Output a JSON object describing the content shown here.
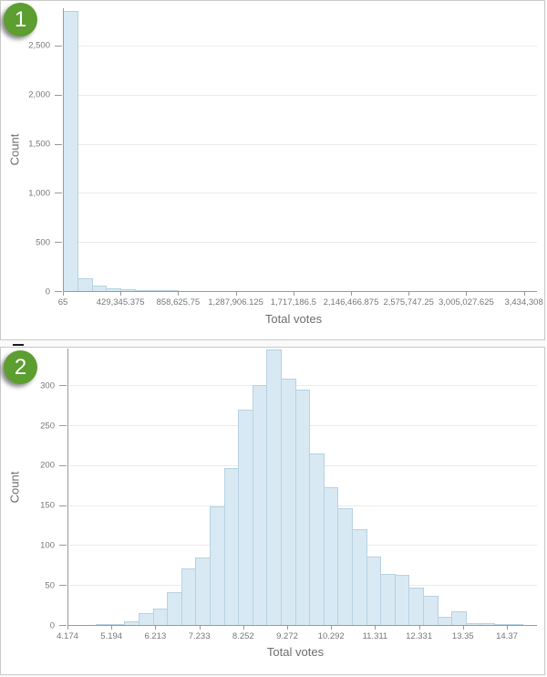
{
  "badges": [
    {
      "label": "1",
      "color": "#5c9e2f"
    },
    {
      "label": "2",
      "color": "#5c9e2f"
    }
  ],
  "colors": {
    "bar_fill": "#d8e9f3",
    "bar_border": "#b7d2e3",
    "axis_line": "#9a9a9a",
    "gridline": "#ebebeb",
    "tick_text": "#76777a",
    "title_text": "#6b6e70",
    "panel_border": "#c9c9c9",
    "badge_green": "#5c9e2f"
  },
  "chart_data": [
    {
      "type": "bar",
      "subtype": "histogram",
      "title": "",
      "xlabel": "Total votes",
      "ylabel": "Count",
      "grid": true,
      "legend": false,
      "bins": 32,
      "x_range": [
        65,
        3434308
      ],
      "x_tick_labels": [
        "65",
        "429,345.375",
        "858,625.75",
        "1,287,906.125",
        "1,717,186.5",
        "2,146,466.875",
        "2,575,747.25",
        "3,005,027.625",
        "3,434,308"
      ],
      "y_tick_labels": [
        "0",
        "500",
        "1,000",
        "1,500",
        "2,000",
        "2,500"
      ],
      "y_tick_values": [
        0,
        500,
        1000,
        1500,
        2000,
        2500
      ],
      "ylim": [
        0,
        2880
      ],
      "values": [
        2850,
        130,
        54,
        31,
        14,
        8,
        6,
        3,
        0,
        0,
        0,
        0,
        0,
        0,
        0,
        0,
        0,
        0,
        0,
        0,
        0,
        0,
        0,
        0,
        0,
        0,
        0,
        0,
        0,
        0,
        0,
        0
      ]
    },
    {
      "type": "bar",
      "subtype": "histogram",
      "title": "",
      "xlabel": "Total votes",
      "ylabel": "Count",
      "grid": true,
      "legend": false,
      "bins": 32,
      "x_range": [
        4.174,
        14.73
      ],
      "x_tick_labels": [
        "4.174",
        "5.194",
        "6.213",
        "7.233",
        "8.252",
        "9.272",
        "10.292",
        "11.311",
        "12.331",
        "13.35",
        "14.37"
      ],
      "y_tick_labels": [
        "0",
        "50",
        "100",
        "150",
        "200",
        "250",
        "300"
      ],
      "y_tick_values": [
        0,
        50,
        100,
        150,
        200,
        250,
        300
      ],
      "ylim": [
        0,
        346
      ],
      "values": [
        0,
        0,
        1,
        1,
        4,
        15,
        21,
        41,
        71,
        85,
        148,
        196,
        270,
        300,
        345,
        308,
        295,
        215,
        172,
        146,
        120,
        86,
        64,
        63,
        47,
        36,
        10,
        17,
        2,
        2,
        1,
        1
      ]
    }
  ]
}
